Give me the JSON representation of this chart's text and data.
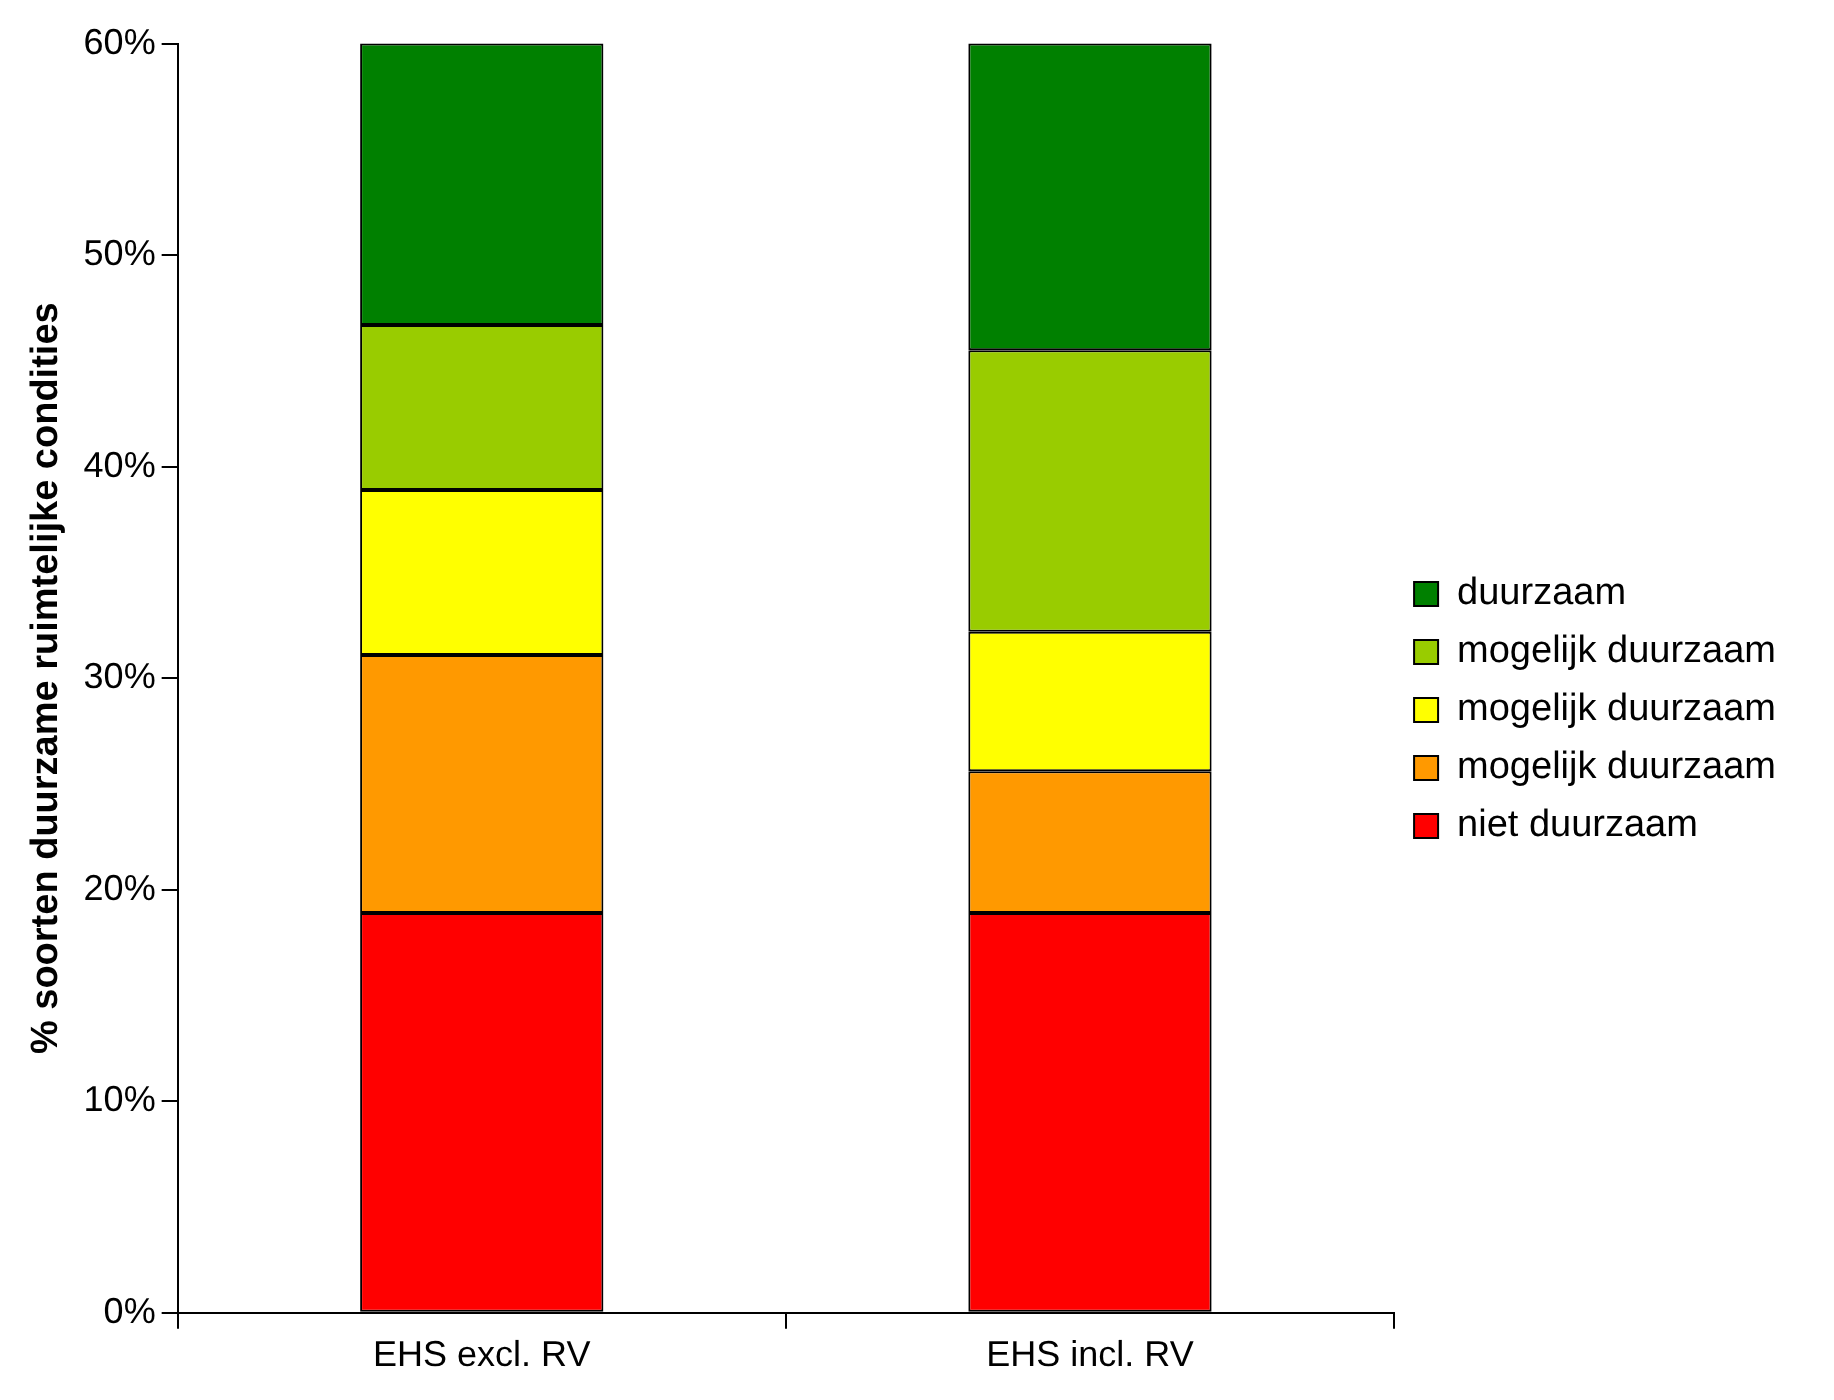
{
  "chart_data": {
    "type": "bar",
    "stacked": true,
    "ylabel": "% soorten duurzame ruimtelijke condities",
    "categories": [
      "EHS excl. RV",
      "EHS incl. RV"
    ],
    "series": [
      {
        "name": "niet duurzaam",
        "color": "#ff0000",
        "values": [
          18.9,
          18.9
        ]
      },
      {
        "name": "mogelijk duurzaam",
        "color": "#ff9900",
        "values": [
          12.2,
          6.7
        ]
      },
      {
        "name": "mogelijk duurzaam",
        "color": "#ffff00",
        "values": [
          7.8,
          6.6
        ]
      },
      {
        "name": "mogelijk duurzaam",
        "color": "#99cc00",
        "values": [
          7.8,
          13.3
        ]
      },
      {
        "name": "duurzaam",
        "color": "#008000",
        "values": [
          13.3,
          14.5
        ]
      }
    ],
    "ylim": [
      0,
      60
    ],
    "yticks": [
      {
        "value": 0,
        "label": "0%"
      },
      {
        "value": 10,
        "label": "10%"
      },
      {
        "value": 20,
        "label": "20%"
      },
      {
        "value": 30,
        "label": "30%"
      },
      {
        "value": 40,
        "label": "40%"
      },
      {
        "value": 50,
        "label": "50%"
      },
      {
        "value": 60,
        "label": "60%"
      }
    ],
    "grid": false,
    "legend": "right"
  }
}
